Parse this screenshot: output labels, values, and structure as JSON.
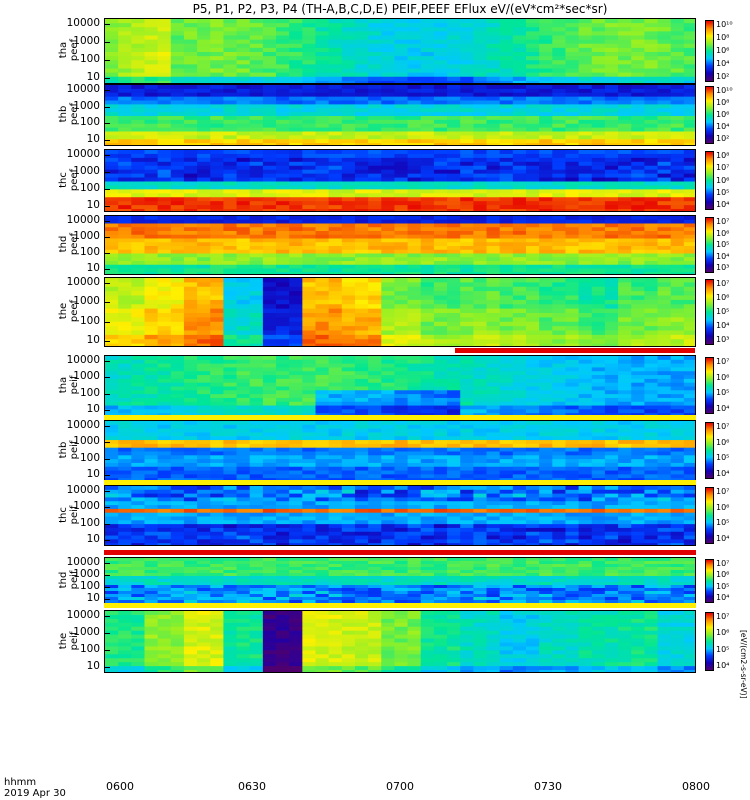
{
  "title": "P5, P1, P2, P3, P4 (TH-A,B,C,D,E) PEIF,PEEF EFlux eV/(eV*cm²*sec*sr)",
  "x_axis": {
    "units_line1": "hhmm",
    "units_line2": "2019 Apr 30",
    "ticks": [
      "0600",
      "0630",
      "0700",
      "0730",
      "0800"
    ]
  },
  "colorbar_unit": "[eV/(cm2-s-sr-eV)]",
  "chart_data": [
    {
      "type": "heatmap",
      "ylabel_top": "tha",
      "ylabel_bottom": "peef",
      "yticks": [
        "10000",
        "1000",
        "100",
        "10"
      ],
      "cbar_ticks": [
        "10¹⁰",
        "10⁸",
        "10⁶",
        "10⁴",
        "10²"
      ],
      "ylog": true
    },
    {
      "type": "heatmap",
      "ylabel_top": "thb",
      "ylabel_bottom": "peef",
      "yticks": [
        "10000",
        "1000",
        "100",
        "10"
      ],
      "cbar_ticks": [
        "10¹⁰",
        "10⁸",
        "10⁶",
        "10⁴",
        "10²"
      ],
      "ylog": true
    },
    {
      "type": "heatmap",
      "ylabel_top": "thc",
      "ylabel_bottom": "peef",
      "yticks": [
        "10000",
        "1000",
        "100",
        "10"
      ],
      "cbar_ticks": [
        "10⁸",
        "10⁷",
        "10⁶",
        "10⁵",
        "10⁴"
      ],
      "ylog": true
    },
    {
      "type": "heatmap",
      "ylabel_top": "thd",
      "ylabel_bottom": "peef",
      "yticks": [
        "10000",
        "1000",
        "100",
        "10"
      ],
      "cbar_ticks": [
        "10⁷",
        "10⁶",
        "10⁵",
        "10⁴",
        "10³"
      ],
      "ylog": true
    },
    {
      "type": "heatmap",
      "ylabel_top": "the",
      "ylabel_bottom": "peef",
      "yticks": [
        "10000",
        "1000",
        "100",
        "10"
      ],
      "cbar_ticks": [
        "10⁷",
        "10⁶",
        "10⁵",
        "10⁴",
        "10³"
      ],
      "ylog": true
    },
    {
      "type": "heatmap",
      "ylabel_top": "tha",
      "ylabel_bottom": "peif",
      "yticks": [
        "10000",
        "1000",
        "100",
        "10"
      ],
      "cbar_ticks": [
        "10⁷",
        "10⁶",
        "10⁵",
        "10⁴"
      ],
      "ylog": true
    },
    {
      "type": "heatmap",
      "ylabel_top": "thb",
      "ylabel_bottom": "peif",
      "yticks": [
        "10000",
        "1000",
        "100",
        "10"
      ],
      "cbar_ticks": [
        "10⁷",
        "10⁶",
        "10⁵",
        "10⁴"
      ],
      "ylog": true
    },
    {
      "type": "heatmap",
      "ylabel_top": "thc",
      "ylabel_bottom": "peif",
      "yticks": [
        "10000",
        "1000",
        "100",
        "10"
      ],
      "cbar_ticks": [
        "10⁷",
        "10⁶",
        "10⁵",
        "10⁴"
      ],
      "ylog": true
    },
    {
      "type": "heatmap",
      "ylabel_top": "thd",
      "ylabel_bottom": "peif",
      "yticks": [
        "10000",
        "1000",
        "100",
        "10"
      ],
      "cbar_ticks": [
        "10⁷",
        "10⁶",
        "10⁵",
        "10⁴"
      ],
      "ylog": true
    },
    {
      "type": "heatmap",
      "ylabel_top": "the",
      "ylabel_bottom": "peif",
      "yticks": [
        "10000",
        "1000",
        "100",
        "10"
      ],
      "cbar_ticks": [
        "10⁷",
        "10⁶",
        "10⁵",
        "10⁴"
      ],
      "ylog": true
    }
  ]
}
